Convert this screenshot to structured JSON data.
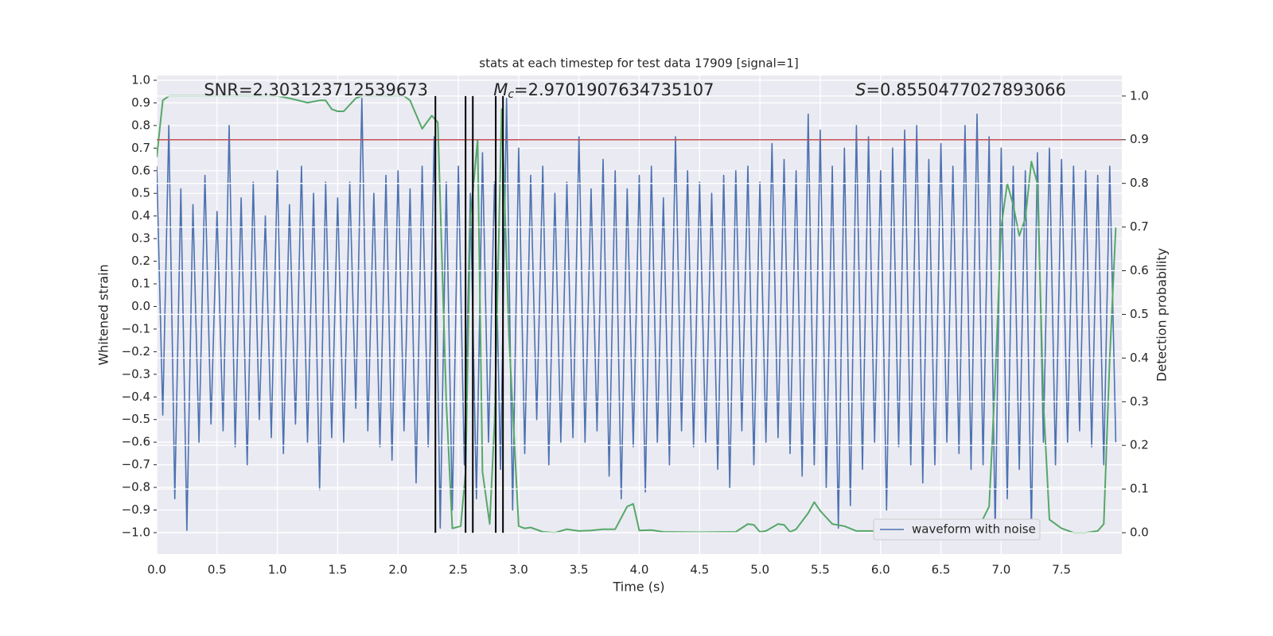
{
  "chart_data": {
    "type": "line",
    "title": "stats at each timestep for test data 17909 [signal=1]",
    "xlabel": "Time (s)",
    "ylabel": "Whitened strain",
    "y2label": "Detection probability",
    "xlim": [
      0,
      8
    ],
    "ylim": [
      -1.095,
      1.021
    ],
    "y2lim": [
      -0.049,
      1.047
    ],
    "xticks": [
      {
        "value": 0,
        "label": "0.0"
      },
      0.5,
      {
        "value": 1,
        "label": "1.0"
      },
      1.5,
      {
        "value": 2,
        "label": "2.0"
      },
      2.5,
      {
        "value": 3,
        "label": "3.0"
      },
      3.5,
      {
        "value": 4,
        "label": "4.0"
      },
      4.5,
      {
        "value": 5,
        "label": "5.0"
      },
      5.5,
      {
        "value": 6,
        "label": "6.0"
      },
      6.5,
      {
        "value": 7,
        "label": "7.0"
      },
      7.5
    ],
    "yticks": [
      {
        "value": -1.0,
        "label": "−1.0"
      },
      {
        "value": -0.9,
        "label": "−0.9"
      },
      {
        "value": -0.8,
        "label": "−0.8"
      },
      {
        "value": -0.7,
        "label": "−0.7"
      },
      {
        "value": -0.6,
        "label": "−0.6"
      },
      {
        "value": -0.5,
        "label": "−0.5"
      },
      {
        "value": -0.4,
        "label": "−0.4"
      },
      {
        "value": -0.3,
        "label": "−0.3"
      },
      {
        "value": -0.2,
        "label": "−0.2"
      },
      {
        "value": -0.1,
        "label": "−0.1"
      },
      {
        "value": 0,
        "label": "0.0"
      },
      0.1,
      0.2,
      0.3,
      0.4,
      0.5,
      0.6,
      0.7,
      0.8,
      0.9,
      {
        "value": 1,
        "label": "1.0"
      }
    ],
    "y2ticks": [
      {
        "value": 0,
        "label": "0.0"
      },
      0.1,
      0.2,
      0.3,
      0.4,
      0.5,
      0.6,
      0.7,
      0.8,
      0.9,
      {
        "value": 1,
        "label": "1.0"
      }
    ],
    "grid": true,
    "legend": "lower right",
    "series": [
      {
        "name": "waveform with noise",
        "color": "#4c72b0",
        "x": [
          0,
          0.05,
          0.1,
          0.15,
          0.2,
          0.25,
          0.3,
          0.35,
          0.4,
          0.45,
          0.5,
          0.55,
          0.6,
          0.65,
          0.7,
          0.75,
          0.8,
          0.85,
          0.9,
          0.95,
          1.0,
          1.05,
          1.1,
          1.15,
          1.2,
          1.25,
          1.3,
          1.35,
          1.4,
          1.45,
          1.5,
          1.55,
          1.6,
          1.65,
          1.7,
          1.75,
          1.8,
          1.85,
          1.9,
          1.95,
          2.0,
          2.05,
          2.1,
          2.15,
          2.2,
          2.25,
          2.3,
          2.35,
          2.4,
          2.45,
          2.5,
          2.55,
          2.6,
          2.65,
          2.7,
          2.75,
          2.8,
          2.85,
          2.9,
          2.95,
          3.0,
          3.05,
          3.1,
          3.15,
          3.2,
          3.25,
          3.3,
          3.35,
          3.4,
          3.45,
          3.5,
          3.55,
          3.6,
          3.65,
          3.7,
          3.75,
          3.8,
          3.85,
          3.9,
          3.95,
          4.0,
          4.05,
          4.1,
          4.15,
          4.2,
          4.25,
          4.3,
          4.35,
          4.4,
          4.45,
          4.5,
          4.55,
          4.6,
          4.65,
          4.7,
          4.75,
          4.8,
          4.85,
          4.9,
          4.95,
          5.0,
          5.05,
          5.1,
          5.15,
          5.2,
          5.25,
          5.3,
          5.35,
          5.4,
          5.45,
          5.5,
          5.55,
          5.6,
          5.65,
          5.7,
          5.75,
          5.8,
          5.85,
          5.9,
          5.95,
          6.0,
          6.05,
          6.1,
          6.15,
          6.2,
          6.25,
          6.3,
          6.35,
          6.4,
          6.45,
          6.5,
          6.55,
          6.6,
          6.65,
          6.7,
          6.75,
          6.8,
          6.85,
          6.9,
          6.95,
          7.0,
          7.05,
          7.1,
          7.15,
          7.2,
          7.25,
          7.3,
          7.35,
          7.4,
          7.45,
          7.5,
          7.55,
          7.6,
          7.65,
          7.7,
          7.75,
          7.8,
          7.85,
          7.9,
          7.95
        ],
        "values": [
          0.62,
          -0.48,
          0.8,
          -0.85,
          0.52,
          -0.99,
          0.45,
          -0.6,
          0.58,
          -0.52,
          0.42,
          -0.55,
          0.8,
          -0.62,
          0.48,
          -0.7,
          0.55,
          -0.5,
          0.4,
          -0.58,
          0.6,
          -0.65,
          0.45,
          -0.52,
          0.62,
          -0.6,
          0.5,
          -0.81,
          0.55,
          -0.58,
          0.48,
          -0.6,
          0.55,
          -0.45,
          0.92,
          -0.55,
          0.5,
          -0.62,
          0.58,
          -0.68,
          0.6,
          -0.55,
          0.52,
          -0.78,
          0.62,
          -0.62,
          0.75,
          -0.98,
          0.55,
          -0.9,
          0.62,
          -0.7,
          0.5,
          -0.85,
          0.68,
          -0.6,
          0.55,
          -0.72,
          0.92,
          -0.9,
          0.7,
          -0.65,
          0.58,
          -0.5,
          0.62,
          -0.7,
          0.5,
          -0.6,
          0.55,
          -0.58,
          0.75,
          -0.6,
          0.52,
          -0.55,
          0.65,
          -0.75,
          0.6,
          -0.85,
          0.52,
          -0.62,
          0.58,
          -0.82,
          0.62,
          -0.6,
          0.48,
          -0.7,
          0.75,
          -0.55,
          0.6,
          -0.62,
          0.55,
          -0.6,
          0.5,
          -0.72,
          0.58,
          -0.8,
          0.6,
          -0.55,
          0.62,
          -0.7,
          0.55,
          -0.6,
          0.72,
          -0.58,
          0.65,
          -0.65,
          0.6,
          -0.75,
          0.85,
          -0.7,
          0.78,
          -0.8,
          0.62,
          -0.98,
          0.7,
          -0.88,
          0.8,
          -0.72,
          0.75,
          -0.6,
          0.6,
          -0.9,
          0.7,
          -0.62,
          0.78,
          -0.7,
          0.8,
          -0.78,
          0.65,
          -0.7,
          0.72,
          -0.6,
          0.62,
          -0.65,
          0.8,
          -0.72,
          0.85,
          -0.7,
          0.75,
          -0.99,
          0.7,
          -0.85,
          0.62,
          -0.72,
          0.6,
          -0.99,
          0.68,
          -0.6,
          0.7,
          -0.7,
          0.65,
          -0.6,
          0.62,
          -0.55,
          0.6,
          -0.62,
          0.58,
          -0.7,
          0.62,
          -0.6
        ]
      },
      {
        "color": "#55a868",
        "axis": "y2",
        "x": [
          0,
          0.05,
          0.1,
          0.2,
          0.4,
          0.6,
          0.8,
          1.0,
          1.1,
          1.25,
          1.35,
          1.4,
          1.45,
          1.5,
          1.55,
          1.65,
          1.7,
          1.8,
          2.0,
          2.05,
          2.1,
          2.2,
          2.28,
          2.33,
          2.4,
          2.45,
          2.52,
          2.56,
          2.6,
          2.66,
          2.7,
          2.76,
          2.8,
          2.86,
          2.92,
          3.0,
          3.05,
          3.1,
          3.2,
          3.3,
          3.4,
          3.5,
          3.6,
          3.7,
          3.8,
          3.9,
          3.95,
          4.0,
          4.1,
          4.2,
          4.5,
          4.8,
          4.9,
          4.95,
          5.0,
          5.05,
          5.15,
          5.2,
          5.25,
          5.3,
          5.4,
          5.45,
          5.5,
          5.6,
          5.7,
          5.8,
          6.0,
          6.3,
          6.5,
          6.8,
          6.9,
          6.95,
          7.0,
          7.05,
          7.1,
          7.15,
          7.2,
          7.25,
          7.3,
          7.35,
          7.4,
          7.5,
          7.6,
          7.7,
          7.8,
          7.85,
          7.9,
          7.95
        ],
        "values": [
          0.86,
          0.99,
          1.0,
          1.0,
          1.0,
          1.0,
          1.0,
          1.0,
          0.995,
          0.985,
          0.99,
          0.99,
          0.97,
          0.965,
          0.965,
          0.995,
          1.0,
          1.0,
          1.0,
          1.0,
          0.99,
          0.925,
          0.955,
          0.94,
          0.3,
          0.01,
          0.015,
          0.14,
          0.72,
          0.9,
          0.14,
          0.02,
          0.25,
          0.97,
          0.45,
          0.015,
          0.01,
          0.012,
          0.002,
          0.0,
          0.008,
          0.004,
          0.005,
          0.008,
          0.008,
          0.06,
          0.066,
          0.005,
          0.006,
          0.002,
          0.001,
          0.002,
          0.02,
          0.018,
          0.002,
          0.004,
          0.02,
          0.018,
          0.002,
          0.008,
          0.045,
          0.07,
          0.05,
          0.02,
          0.015,
          0.004,
          0.004,
          0.0,
          0.004,
          0.004,
          0.06,
          0.35,
          0.7,
          0.8,
          0.75,
          0.68,
          0.72,
          0.85,
          0.8,
          0.3,
          0.03,
          0.01,
          0.0,
          0.0,
          0.004,
          0.02,
          0.4,
          0.7
        ]
      }
    ],
    "hline": {
      "y": 0.9,
      "axis": "y2",
      "color": "#c44e52"
    },
    "vlines": {
      "x": [
        2.31,
        2.56,
        2.62,
        2.81,
        2.87
      ],
      "ymin": 0,
      "ymax": 1,
      "axis": "y2",
      "color": "#000000"
    },
    "annotations": [
      {
        "text": "SNR=2.303123712539673",
        "x": 0.2
      },
      {
        "symbol": "M",
        "subscript": "c",
        "text": "=2.9701907634735107",
        "x": 2.6
      },
      {
        "symbol": "S",
        "text": "=0.8550477027893066",
        "x": 5.6
      }
    ]
  }
}
